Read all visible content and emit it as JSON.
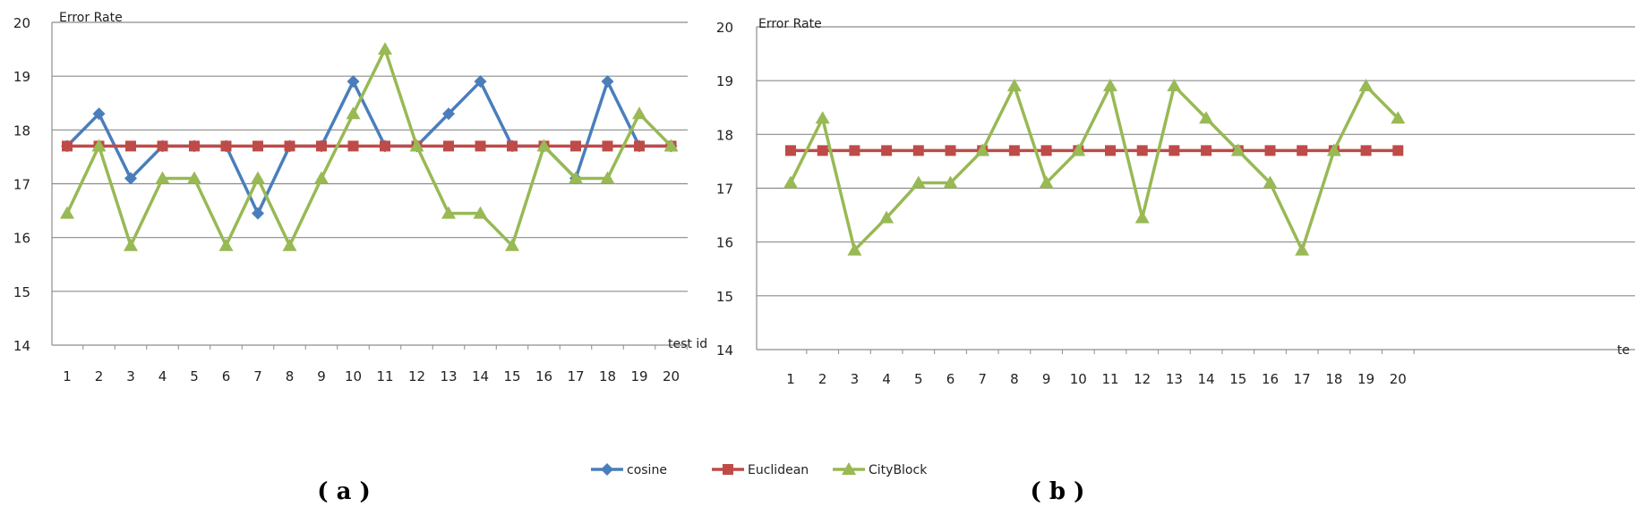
{
  "chart_data": [
    {
      "panel": "a",
      "type": "line",
      "title": "",
      "xlabel": "test id",
      "ylabel": "Error Rate",
      "ylim": [
        14,
        20
      ],
      "yticks": [
        14,
        15,
        16,
        17,
        18,
        19,
        20
      ],
      "categories": [
        "1",
        "2",
        "3",
        "4",
        "5",
        "6",
        "7",
        "8",
        "9",
        "10",
        "11",
        "12",
        "13",
        "14",
        "15",
        "16",
        "17",
        "18",
        "19",
        "20"
      ],
      "series": [
        {
          "name": "cosine",
          "color": "#4a7ebb",
          "marker": "diamond",
          "values": [
            17.7,
            18.3,
            17.1,
            17.7,
            17.7,
            17.7,
            16.45,
            17.7,
            17.7,
            18.9,
            17.7,
            17.7,
            18.3,
            18.9,
            17.7,
            17.7,
            17.1,
            18.9,
            17.7,
            17.7
          ]
        },
        {
          "name": "Euclidean",
          "color": "#be4b48",
          "marker": "square",
          "values": [
            17.7,
            17.7,
            17.7,
            17.7,
            17.7,
            17.7,
            17.7,
            17.7,
            17.7,
            17.7,
            17.7,
            17.7,
            17.7,
            17.7,
            17.7,
            17.7,
            17.7,
            17.7,
            17.7,
            17.7
          ]
        },
        {
          "name": "CityBlock",
          "color": "#98b954",
          "marker": "triangle",
          "values": [
            16.45,
            17.7,
            15.85,
            17.1,
            17.1,
            15.85,
            17.1,
            15.85,
            17.1,
            18.3,
            19.5,
            17.7,
            16.45,
            16.45,
            15.85,
            17.7,
            17.1,
            17.1,
            18.3,
            17.7
          ]
        }
      ],
      "caption": "( a )"
    },
    {
      "panel": "b",
      "type": "line",
      "title": "",
      "xlabel": "te",
      "ylabel": "Error Rate",
      "ylim": [
        14,
        20
      ],
      "yticks": [
        14,
        15,
        16,
        17,
        18,
        19,
        20
      ],
      "categories": [
        "1",
        "2",
        "3",
        "4",
        "5",
        "6",
        "7",
        "8",
        "9",
        "10",
        "11",
        "12",
        "13",
        "14",
        "15",
        "16",
        "17",
        "18",
        "19",
        "20"
      ],
      "series": [
        {
          "name": "Euclidean",
          "color": "#be4b48",
          "marker": "square",
          "values": [
            17.7,
            17.7,
            17.7,
            17.7,
            17.7,
            17.7,
            17.7,
            17.7,
            17.7,
            17.7,
            17.7,
            17.7,
            17.7,
            17.7,
            17.7,
            17.7,
            17.7,
            17.7,
            17.7,
            17.7
          ]
        },
        {
          "name": "CityBlock",
          "color": "#98b954",
          "marker": "triangle",
          "values": [
            17.1,
            18.3,
            15.85,
            16.45,
            17.1,
            17.1,
            17.7,
            18.9,
            17.1,
            17.7,
            18.9,
            16.45,
            18.9,
            18.3,
            17.7,
            17.1,
            15.85,
            17.7,
            18.9,
            18.3
          ]
        }
      ],
      "caption": "( b )"
    }
  ],
  "legend": {
    "placement": "bottom-center",
    "items": [
      {
        "name": "cosine",
        "color": "#4a7ebb",
        "marker": "diamond"
      },
      {
        "name": "Euclidean",
        "color": "#be4b48",
        "marker": "square"
      },
      {
        "name": "CityBlock",
        "color": "#98b954",
        "marker": "triangle"
      }
    ]
  }
}
